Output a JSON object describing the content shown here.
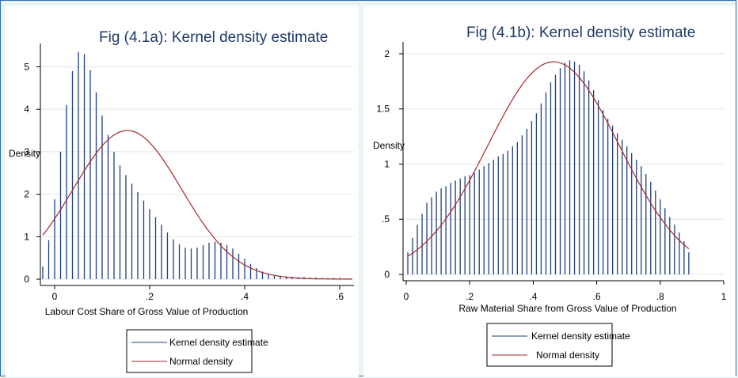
{
  "chart_data": [
    {
      "type": "bar",
      "title": "Fig (4.1a): Kernel density estimate",
      "xlabel": "Labour Cost Share of Gross Value of Production",
      "ylabel": "Density",
      "xlim": [
        -0.03,
        0.63
      ],
      "ylim": [
        0,
        5.4
      ],
      "xticks": [
        {
          "v": 0,
          "label": "0"
        },
        {
          "v": 0.2,
          "label": ".2"
        },
        {
          "v": 0.4,
          "label": ".4"
        },
        {
          "v": 0.6,
          "label": ".6"
        }
      ],
      "yticks": [
        {
          "v": 0,
          "label": "0"
        },
        {
          "v": 1,
          "label": "1"
        },
        {
          "v": 2,
          "label": "2"
        },
        {
          "v": 3,
          "label": "3"
        },
        {
          "v": 4,
          "label": "4"
        },
        {
          "v": 5,
          "label": "5"
        }
      ],
      "grid": true,
      "series": [
        {
          "name": "Kernel density estimate",
          "color": "#1f3f7a",
          "x": [
            -0.025,
            -0.0125,
            0.0,
            0.0125,
            0.025,
            0.0375,
            0.05,
            0.0625,
            0.075,
            0.0875,
            0.1,
            0.1125,
            0.125,
            0.1375,
            0.15,
            0.1625,
            0.175,
            0.1875,
            0.2,
            0.2125,
            0.225,
            0.2375,
            0.25,
            0.2625,
            0.275,
            0.2875,
            0.3,
            0.3125,
            0.325,
            0.3375,
            0.35,
            0.3625,
            0.375,
            0.3875,
            0.4,
            0.4125,
            0.425,
            0.4375,
            0.45,
            0.4625,
            0.475,
            0.4875,
            0.5,
            0.5125,
            0.525,
            0.5375,
            0.55,
            0.5625,
            0.575,
            0.5875,
            0.6,
            0.6125,
            0.625
          ],
          "values": [
            0.3,
            0.92,
            1.88,
            3.0,
            4.1,
            4.9,
            5.35,
            5.3,
            4.92,
            4.4,
            3.85,
            3.4,
            3.0,
            2.68,
            2.45,
            2.25,
            2.05,
            1.85,
            1.65,
            1.46,
            1.28,
            1.1,
            0.94,
            0.82,
            0.74,
            0.72,
            0.74,
            0.8,
            0.86,
            0.88,
            0.86,
            0.8,
            0.72,
            0.6,
            0.48,
            0.36,
            0.26,
            0.18,
            0.13,
            0.1,
            0.08,
            0.07,
            0.06,
            0.05,
            0.05,
            0.04,
            0.04,
            0.03,
            0.03,
            0.03,
            0.03,
            0.02,
            0.02
          ]
        },
        {
          "name": "Normal density",
          "color": "#a5282b",
          "mean": 0.153,
          "sd": 0.114,
          "x_range": [
            -0.025,
            0.625
          ]
        }
      ],
      "legend": {
        "placement": "bottom",
        "entries": [
          "Kernel density estimate",
          "Normal density"
        ]
      }
    },
    {
      "type": "bar",
      "title": "Fig (4.1b): Kernel density estimate",
      "xlabel": "Raw Material Share from Gross Value of Production",
      "ylabel": "Density",
      "xlim": [
        -0.01,
        1.0
      ],
      "ylim": [
        0,
        2.05
      ],
      "xticks": [
        {
          "v": 0,
          "label": "0"
        },
        {
          "v": 0.2,
          "label": ".2"
        },
        {
          "v": 0.4,
          "label": ".4"
        },
        {
          "v": 0.6,
          "label": ".6"
        },
        {
          "v": 0.8,
          "label": ".8"
        },
        {
          "v": 1,
          "label": "1"
        }
      ],
      "yticks": [
        {
          "v": 0,
          "label": "0"
        },
        {
          "v": 0.5,
          "label": ".5"
        },
        {
          "v": 1,
          "label": "1"
        },
        {
          "v": 1.5,
          "label": "1.5"
        },
        {
          "v": 2,
          "label": "2"
        }
      ],
      "grid": true,
      "series": [
        {
          "name": "Kernel density estimate",
          "color": "#1f3f7a",
          "x": [
            0.005,
            0.02,
            0.035,
            0.05,
            0.065,
            0.08,
            0.095,
            0.11,
            0.125,
            0.14,
            0.155,
            0.17,
            0.185,
            0.2,
            0.215,
            0.23,
            0.245,
            0.26,
            0.275,
            0.29,
            0.305,
            0.32,
            0.335,
            0.35,
            0.365,
            0.38,
            0.395,
            0.41,
            0.425,
            0.44,
            0.455,
            0.47,
            0.485,
            0.5,
            0.515,
            0.53,
            0.545,
            0.56,
            0.575,
            0.59,
            0.605,
            0.62,
            0.635,
            0.65,
            0.665,
            0.68,
            0.695,
            0.71,
            0.725,
            0.74,
            0.755,
            0.77,
            0.785,
            0.8,
            0.815,
            0.83,
            0.845,
            0.86,
            0.875,
            0.89
          ],
          "values": [
            0.2,
            0.33,
            0.45,
            0.55,
            0.65,
            0.7,
            0.75,
            0.78,
            0.8,
            0.83,
            0.85,
            0.87,
            0.89,
            0.9,
            0.92,
            0.95,
            0.98,
            1.01,
            1.04,
            1.07,
            1.09,
            1.12,
            1.16,
            1.2,
            1.26,
            1.32,
            1.39,
            1.46,
            1.55,
            1.65,
            1.74,
            1.81,
            1.87,
            1.92,
            1.94,
            1.93,
            1.9,
            1.84,
            1.76,
            1.67,
            1.58,
            1.49,
            1.41,
            1.35,
            1.28,
            1.22,
            1.16,
            1.1,
            1.04,
            0.98,
            0.91,
            0.84,
            0.76,
            0.68,
            0.6,
            0.52,
            0.45,
            0.38,
            0.3,
            0.2
          ]
        },
        {
          "name": "Normal density",
          "color": "#a5282b",
          "mean": 0.464,
          "sd": 0.207,
          "x_range": [
            0.005,
            0.89
          ]
        }
      ],
      "legend": {
        "placement": "bottom",
        "entries": [
          "Kernel density estimate",
          "Normal density"
        ]
      }
    }
  ]
}
